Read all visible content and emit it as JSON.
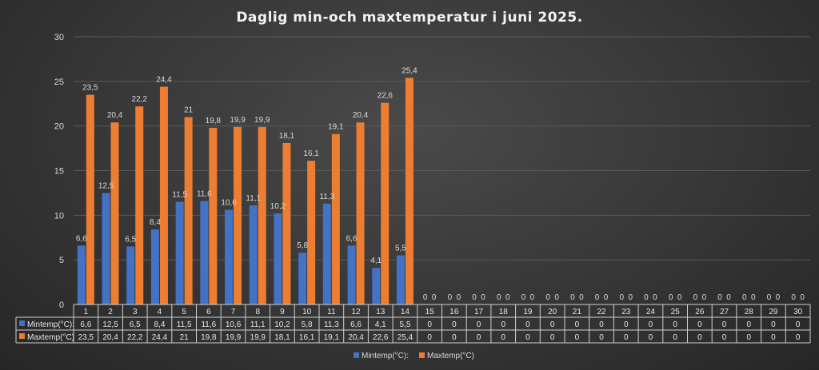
{
  "chart_data": {
    "type": "bar",
    "title": "Daglig min-och maxtemperatur i juni 2025.",
    "categories": [
      "1",
      "2",
      "3",
      "4",
      "5",
      "6",
      "7",
      "8",
      "9",
      "10",
      "11",
      "12",
      "13",
      "14",
      "15",
      "16",
      "17",
      "18",
      "19",
      "20",
      "21",
      "22",
      "23",
      "24",
      "25",
      "26",
      "27",
      "28",
      "29",
      "30"
    ],
    "series": [
      {
        "name": "Mintemp(°C):",
        "color": "#4472c4",
        "values": [
          6.6,
          12.5,
          6.5,
          8.4,
          11.5,
          11.6,
          10.6,
          11.1,
          10.2,
          5.8,
          11.3,
          6.6,
          4.1,
          5.5,
          0,
          0,
          0,
          0,
          0,
          0,
          0,
          0,
          0,
          0,
          0,
          0,
          0,
          0,
          0,
          0
        ],
        "labels": [
          "6,6",
          "12,5",
          "6,5",
          "8,4",
          "11,5",
          "11,6",
          "10,6",
          "11,1",
          "10,2",
          "5,8",
          "11,3",
          "6,6",
          "4,1",
          "5,5",
          "0",
          "0",
          "0",
          "0",
          "0",
          "0",
          "0",
          "0",
          "0",
          "0",
          "0",
          "0",
          "0",
          "0",
          "0",
          "0"
        ]
      },
      {
        "name": "Maxtemp(°C)",
        "color": "#ed7d31",
        "values": [
          23.5,
          20.4,
          22.2,
          24.4,
          21,
          19.8,
          19.9,
          19.9,
          18.1,
          16.1,
          19.1,
          20.4,
          22.6,
          25.4,
          0,
          0,
          0,
          0,
          0,
          0,
          0,
          0,
          0,
          0,
          0,
          0,
          0,
          0,
          0,
          0
        ],
        "labels": [
          "23,5",
          "20,4",
          "22,2",
          "24,4",
          "21",
          "19,8",
          "19,9",
          "19,9",
          "18,1",
          "16,1",
          "19,1",
          "20,4",
          "22,6",
          "25,4",
          "0",
          "0",
          "0",
          "0",
          "0",
          "0",
          "0",
          "0",
          "0",
          "0",
          "0",
          "0",
          "0",
          "0",
          "0",
          "0"
        ]
      }
    ],
    "legend_labels": [
      "Mintemp(°C):",
      "Maxtemp(°C)"
    ],
    "ylim": [
      0,
      30
    ],
    "yticks": [
      "0",
      "5",
      "10",
      "15",
      "20",
      "25",
      "30"
    ],
    "grid": true,
    "data_table": true,
    "legend_position": "bottom"
  }
}
